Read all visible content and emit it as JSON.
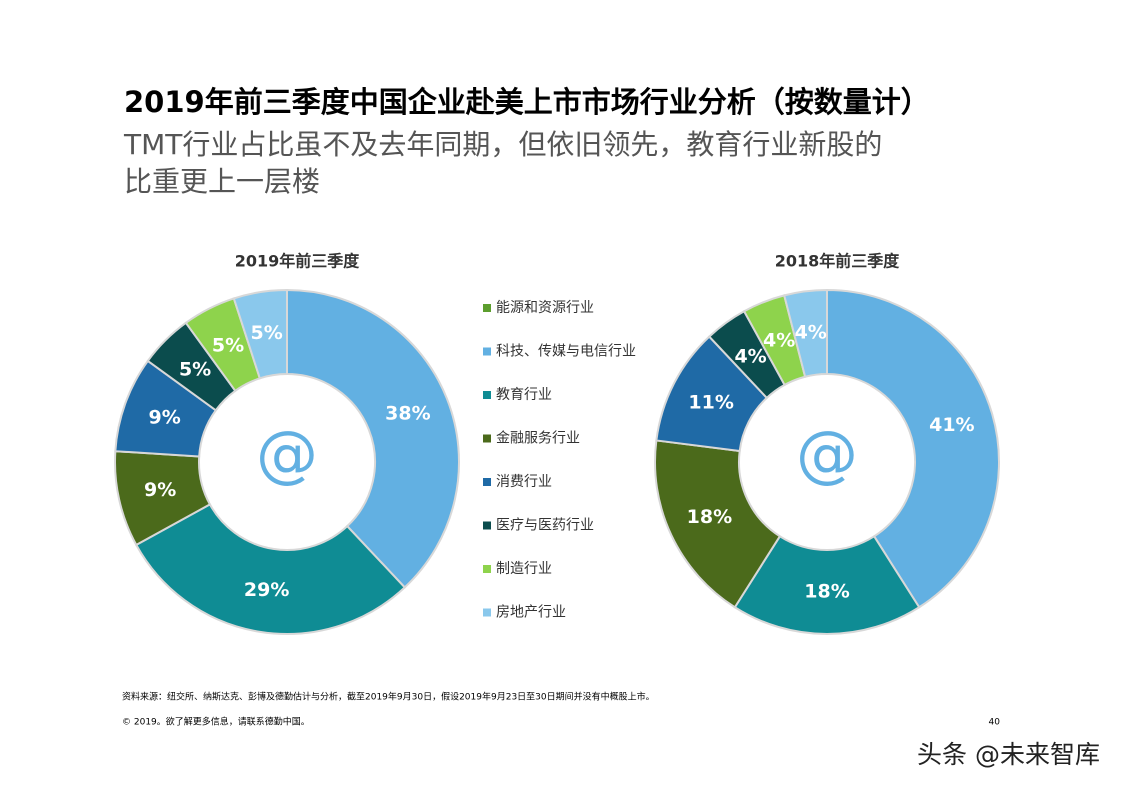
{
  "title": "2019年前三季度中国企业赴美上市市场行业分析（按数量计）",
  "subtitle_lines": [
    "TMT行业占比虽不及去年同期，但依旧领先，教育行业新股的",
    "比重更上一层楼"
  ],
  "center_icon": "@",
  "footnote": "资料来源：纽交所、纳斯达克、彭博及德勤估计与分析，截至2019年9月30日，假设2019年9月23日至30日期间并没有中概股上市。",
  "copyright": "© 2019。欲了解更多信息，请联系德勤中国。",
  "page_number": "40",
  "watermark": "头条 @未来智库",
  "chart_data": {
    "type": "pie",
    "donut": true,
    "categories": [
      "能源和资源行业",
      "科技、传媒与电信行业",
      "教育行业",
      "金融服务行业",
      "消费行业",
      "医疗与医药行业",
      "制造行业",
      "房地产行业"
    ],
    "colors": [
      "#5c9e2e",
      "#62b0e2",
      "#0f8c94",
      "#4b6a1b",
      "#1f6aa6",
      "#0b4c4d",
      "#8ed34c",
      "#8ac8ec"
    ],
    "series": [
      {
        "name": "2019年前三季度",
        "values": [
          0,
          38,
          29,
          9,
          9,
          5,
          5,
          5
        ],
        "value_labels": [
          null,
          "38%",
          "29%",
          "9%",
          "9%",
          "5%",
          "5%",
          "5%"
        ]
      },
      {
        "name": "2018年前三季度",
        "values": [
          0,
          41,
          18,
          18,
          11,
          4,
          4,
          4
        ],
        "value_labels": [
          null,
          "41%",
          "18%",
          "18%",
          "11%",
          "4%",
          "4%",
          "4%"
        ]
      }
    ]
  }
}
